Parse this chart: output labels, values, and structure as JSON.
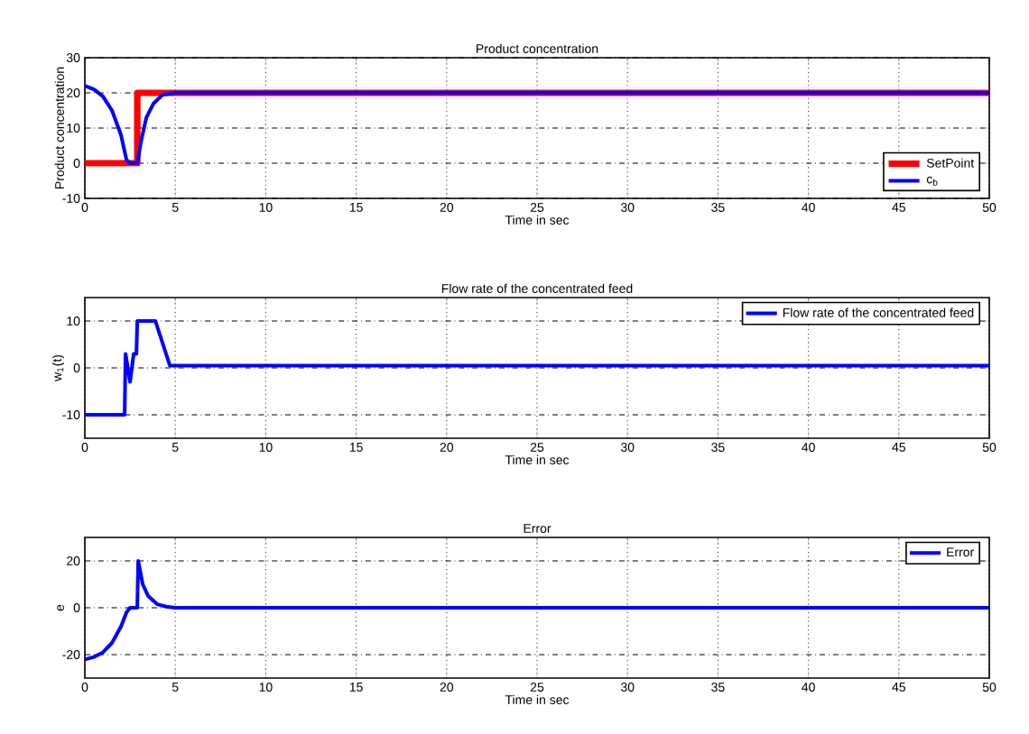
{
  "chart_data": [
    {
      "type": "line",
      "title": "Product concentration",
      "xlabel": "Time in sec",
      "ylabel": "Product concentration",
      "xlim": [
        0,
        50
      ],
      "xticks": [
        0,
        5,
        10,
        15,
        20,
        25,
        30,
        35,
        40,
        45,
        50
      ],
      "ylim": [
        -10,
        30
      ],
      "yticks": [
        -10,
        0,
        10,
        20,
        30
      ],
      "grid": true,
      "legend": "bottom right",
      "series": [
        {
          "name": "SetPoint",
          "color": "#ff0000",
          "x": [
            0,
            2.9,
            2.9,
            50
          ],
          "values": [
            0,
            0,
            20,
            20
          ]
        },
        {
          "name": "c$_{b}$",
          "color": "#0000ff",
          "x": [
            0,
            0.5,
            1,
            1.5,
            2,
            2.3,
            2.5,
            2.9,
            3.1,
            3.4,
            3.8,
            4.3,
            5,
            50
          ],
          "values": [
            22,
            21,
            19,
            15,
            8,
            1,
            0,
            0,
            6,
            13,
            17,
            19.5,
            20,
            20
          ]
        }
      ]
    },
    {
      "type": "line",
      "title": "Flow rate of the concentrated feed",
      "xlabel": "Time in sec",
      "ylabel": "w$_{1}$(t)",
      "xlim": [
        0,
        50
      ],
      "xticks": [
        0,
        5,
        10,
        15,
        20,
        25,
        30,
        35,
        40,
        45,
        50
      ],
      "ylim": [
        -15,
        15
      ],
      "yticks": [
        -10,
        0,
        10
      ],
      "grid": true,
      "legend": "top right",
      "series": [
        {
          "name": "Flow rate of the concentrated feed",
          "color": "#0000ff",
          "x": [
            0,
            2.2,
            2.25,
            2.5,
            2.7,
            2.85,
            2.9,
            3.9,
            4.7,
            50
          ],
          "values": [
            -10,
            -10,
            3,
            -3,
            3,
            3,
            10,
            10,
            0.5,
            0.5
          ]
        }
      ]
    },
    {
      "type": "line",
      "title": "Error",
      "xlabel": "Time in sec",
      "ylabel": "e",
      "xlim": [
        0,
        50
      ],
      "xticks": [
        0,
        5,
        10,
        15,
        20,
        25,
        30,
        35,
        40,
        45,
        50
      ],
      "ylim": [
        -30,
        30
      ],
      "yticks": [
        -20,
        0,
        20
      ],
      "grid": true,
      "legend": "top right",
      "series": [
        {
          "name": "Error",
          "color": "#0000ff",
          "x": [
            0,
            0.5,
            1,
            1.5,
            2,
            2.3,
            2.5,
            2.9,
            2.95,
            3.2,
            3.5,
            4,
            4.5,
            5,
            50
          ],
          "values": [
            -22,
            -21,
            -19,
            -15,
            -8,
            -2,
            0,
            0,
            20,
            10,
            5,
            1.5,
            0.5,
            0,
            0
          ]
        }
      ]
    }
  ]
}
